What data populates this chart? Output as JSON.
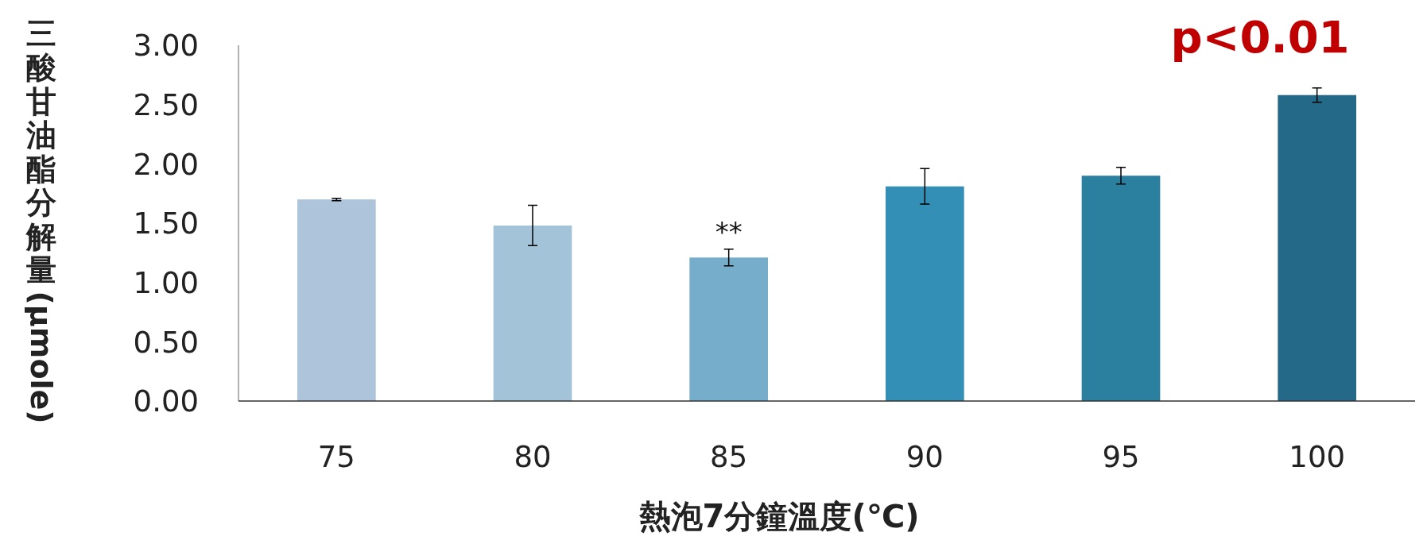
{
  "chart_data": {
    "type": "bar",
    "xlabel": "熱泡7分鐘溫度(℃)",
    "ylabel": "三酸甘油酯分解量(μmole)",
    "categories": [
      "75",
      "80",
      "85",
      "90",
      "95",
      "100"
    ],
    "values": [
      1.7,
      1.48,
      1.21,
      1.81,
      1.9,
      2.58
    ],
    "errors": [
      0.01,
      0.17,
      0.07,
      0.15,
      0.07,
      0.06
    ],
    "colors": [
      "#adc4da",
      "#a2c3d8",
      "#76adcb",
      "#338fb5",
      "#2b7f9f",
      "#246a88"
    ],
    "ylim": [
      0,
      3
    ],
    "yticks": [
      {
        "value": 0,
        "label": "0.00"
      },
      {
        "value": 0.5,
        "label": "0.50"
      },
      {
        "value": 1,
        "label": "1.00"
      },
      {
        "value": 1.5,
        "label": "1.50"
      },
      {
        "value": 2,
        "label": "2.00"
      },
      {
        "value": 2.5,
        "label": "2.50"
      },
      {
        "value": 3,
        "label": "3.00"
      }
    ],
    "annotations": [
      "p<0.01",
      {
        "text": "**",
        "x": "85",
        "y": 1.29
      }
    ]
  }
}
